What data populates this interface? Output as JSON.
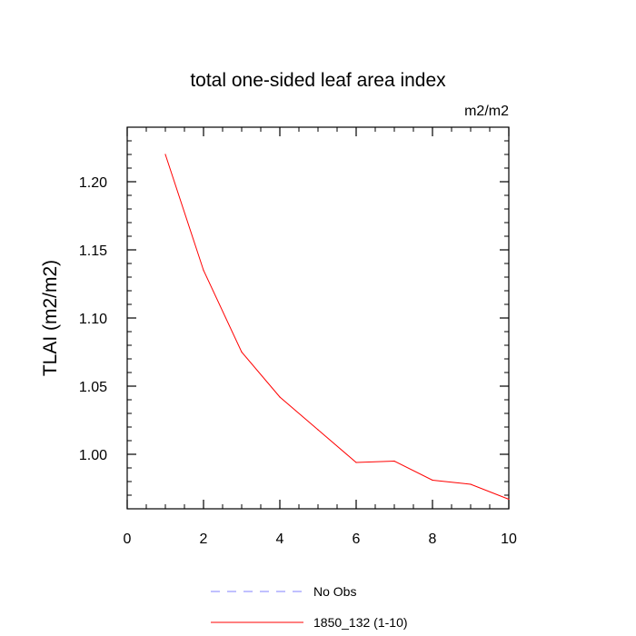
{
  "chart_data": {
    "type": "line",
    "title": "total one-sided leaf area index",
    "units_label": "m2/m2",
    "ylabel": "TLAI  (m2/m2)",
    "xlabel": "",
    "xlim": [
      0,
      10
    ],
    "ylim": [
      0.96,
      1.24
    ],
    "x_ticks": [
      0,
      2,
      4,
      6,
      8,
      10
    ],
    "x_tick_labels": [
      "0",
      "2",
      "4",
      "6",
      "8",
      "10"
    ],
    "y_ticks": [
      1.0,
      1.05,
      1.1,
      1.15,
      1.2
    ],
    "y_tick_labels": [
      "1.00",
      "1.05",
      "1.10",
      "1.15",
      "1.20"
    ],
    "grid": false,
    "legend_placement": "bottom",
    "series": [
      {
        "name": "No Obs",
        "color": "#8080ff",
        "dash": "dashed",
        "x": [],
        "y": []
      },
      {
        "name": "1850_132 (1-10)",
        "color": "#ff0000",
        "dash": "solid",
        "x": [
          1,
          2,
          3,
          4,
          5,
          6,
          7,
          8,
          9,
          10
        ],
        "y": [
          1.22,
          1.135,
          1.075,
          1.042,
          1.018,
          0.994,
          0.995,
          0.981,
          0.978,
          0.967
        ]
      }
    ]
  }
}
